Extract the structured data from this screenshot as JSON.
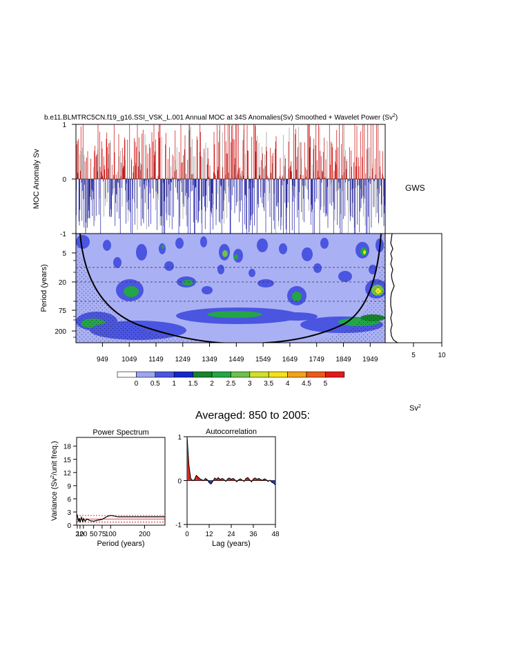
{
  "title": "b.e11.BLMTRC5CN.f19_g16.SSI_VSK_L.001 Annual MOC at 34S Anomalies(Sv) Smoothed + Wavelet Power (Sv",
  "title_sup": "2",
  "title_close": ")",
  "gws_label": "GWS",
  "sv2_label": "Sv",
  "sv2_sup": "2",
  "averaged_title": "Averaged: 850 to 2005:",
  "colors": {
    "positive": "#cc0000",
    "negative": "#1a1aaa",
    "zero_fill": "#aab0f4"
  },
  "chart_data": [
    {
      "type": "area",
      "name": "timeseries",
      "ylabel": "MOC Anomaly Sv",
      "ylim": [
        -1,
        1
      ],
      "yticks": [
        "1",
        "0",
        "-1"
      ],
      "xlim": [
        850,
        2005
      ],
      "grid": false
    },
    {
      "type": "heatmap",
      "name": "wavelet",
      "ylabel": "Period (years)",
      "yticks": [
        "5",
        "20",
        "75",
        "200"
      ],
      "xticks": [
        "949",
        "1049",
        "1149",
        "1249",
        "1349",
        "1449",
        "1549",
        "1649",
        "1749",
        "1849",
        "1949"
      ],
      "xlim": [
        850,
        2005
      ]
    },
    {
      "type": "line",
      "name": "gws",
      "xticks": [
        "5",
        "10"
      ],
      "xlim": [
        0,
        10
      ]
    },
    {
      "type": "heatmap",
      "name": "colorbar",
      "levels": [
        "0",
        "0.5",
        "1",
        "1.5",
        "2",
        "2.5",
        "3",
        "3.5",
        "4",
        "4.5",
        "5"
      ],
      "colors": [
        "#ffffff",
        "#9da5f0",
        "#4a55e0",
        "#1525c8",
        "#17822e",
        "#22a646",
        "#6cc24a",
        "#cfe02a",
        "#f4e01a",
        "#f3a21a",
        "#ec5a1a",
        "#e41a1a"
      ]
    },
    {
      "type": "line",
      "name": "power_spectrum",
      "title": "Power Spectrum",
      "xlabel": "Period (years)",
      "ylabel": "Variance (Sv",
      "ylabel_sup": "2",
      "ylabel_tail": "/unit freq.)",
      "yticks": [
        "0",
        "3",
        "6",
        "9",
        "12",
        "15",
        "18"
      ],
      "xticks": [
        "2",
        "10",
        "20",
        "50",
        "75",
        "100",
        "200"
      ],
      "ylim": [
        0,
        20
      ],
      "xlim": [
        0,
        260
      ],
      "series": [
        {
          "x": [
            2,
            5,
            8,
            10,
            14,
            18,
            20,
            25,
            30,
            40,
            50,
            60,
            75,
            90,
            100,
            110,
            120,
            150,
            200,
            260
          ],
          "values": [
            2.4,
            0.8,
            1.6,
            0.6,
            1.8,
            0.7,
            1.5,
            0.9,
            1.4,
            1.0,
            0.9,
            1.1,
            1.3,
            2.0,
            2.2,
            2.1,
            1.9,
            1.9,
            1.9,
            1.9
          ]
        }
      ],
      "reference_lines": [
        2.2,
        1.4,
        0.7
      ]
    },
    {
      "type": "area",
      "name": "autocorrelation",
      "title": "Autocorrelation",
      "xlabel": "Lag (years)",
      "yticks": [
        "1",
        "0",
        "-1"
      ],
      "xticks": [
        "0",
        "12",
        "24",
        "36",
        "48"
      ],
      "ylim": [
        -1,
        1
      ],
      "xlim": [
        0,
        48
      ],
      "x": [
        0,
        1,
        2,
        3,
        4,
        5,
        6,
        7,
        8,
        9,
        10,
        11,
        12,
        13,
        14,
        15,
        16,
        17,
        18,
        19,
        20,
        21,
        22,
        23,
        24,
        25,
        26,
        27,
        28,
        29,
        30,
        31,
        32,
        33,
        34,
        35,
        36,
        37,
        38,
        39,
        40,
        41,
        42,
        43,
        44,
        45,
        46,
        47,
        48
      ],
      "values": [
        1.0,
        0.35,
        0.05,
        0.0,
        0.02,
        0.12,
        0.08,
        0.04,
        0.02,
        0.0,
        0.05,
        0.02,
        -0.05,
        -0.08,
        -0.02,
        0.06,
        0.03,
        0.07,
        0.02,
        0.05,
        0.03,
        -0.02,
        0.04,
        0.06,
        0.03,
        0.05,
        0.02,
        -0.03,
        0.02,
        0.04,
        0.01,
        -0.02,
        0.05,
        0.07,
        0.02,
        -0.03,
        0.04,
        0.06,
        0.03,
        0.05,
        0.02,
        0.01,
        0.04,
        0.02,
        -0.02,
        0.01,
        -0.04,
        -0.06,
        -0.1
      ]
    }
  ]
}
